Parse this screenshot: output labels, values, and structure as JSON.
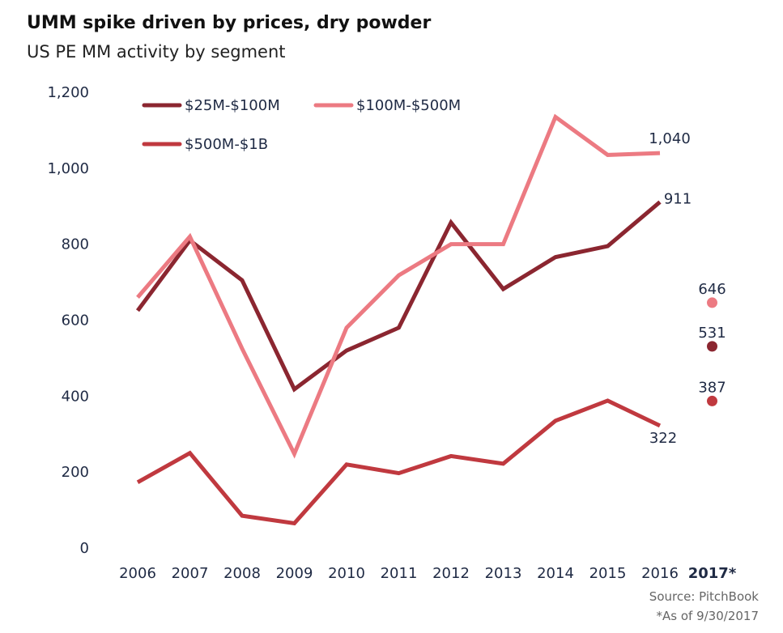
{
  "title": "UMM spike driven by prices, dry powder",
  "subtitle": "US PE MM activity by segment",
  "source": "Source: PitchBook",
  "note": "*As of 9/30/2017",
  "chart_data": {
    "type": "line",
    "title": "UMM spike driven by prices, dry powder",
    "subtitle": "US PE MM activity by segment",
    "categories": [
      "2006",
      "2007",
      "2008",
      "2009",
      "2010",
      "2011",
      "2012",
      "2013",
      "2014",
      "2015",
      "2016",
      "2017*"
    ],
    "ylim": [
      0,
      1200
    ],
    "yticks": [
      0,
      200,
      400,
      600,
      800,
      1000,
      1200
    ],
    "ytick_labels": [
      "0",
      "200",
      "400",
      "600",
      "800",
      "1,000",
      "1,200"
    ],
    "grid": false,
    "legend_position": "top-left",
    "series": [
      {
        "name": "$25M-$100M",
        "color": "#8b2630",
        "values": [
          625,
          810,
          705,
          418,
          520,
          580,
          857,
          682,
          766,
          795,
          911,
          null
        ],
        "point_2017": 531,
        "label_2016": "911",
        "label_2017": "531"
      },
      {
        "name": "$100M-$500M",
        "color": "#ec7a82",
        "values": [
          660,
          820,
          525,
          248,
          580,
          718,
          800,
          800,
          1135,
          1035,
          1040,
          null
        ],
        "point_2017": 646,
        "label_2016": "1,040",
        "label_2017": "646"
      },
      {
        "name": "$500M-$1B",
        "color": "#c0393f",
        "values": [
          173,
          250,
          85,
          65,
          220,
          197,
          242,
          222,
          335,
          388,
          322,
          null
        ],
        "point_2017": 387,
        "label_2016": "322",
        "label_2017": "387"
      }
    ]
  }
}
